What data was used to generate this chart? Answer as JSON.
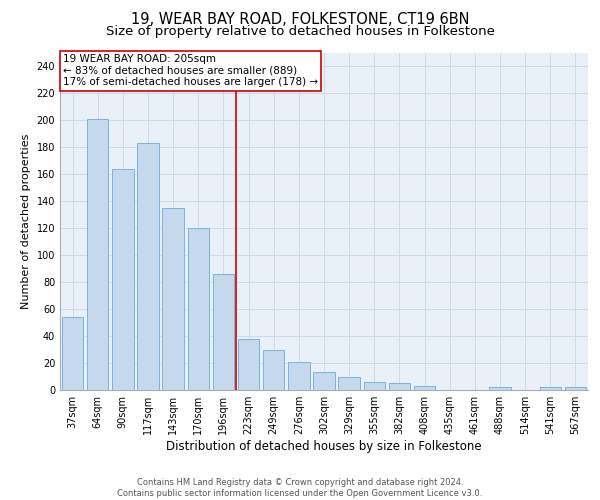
{
  "title": "19, WEAR BAY ROAD, FOLKESTONE, CT19 6BN",
  "subtitle": "Size of property relative to detached houses in Folkestone",
  "xlabel": "Distribution of detached houses by size in Folkestone",
  "ylabel": "Number of detached properties",
  "categories": [
    "37sqm",
    "64sqm",
    "90sqm",
    "117sqm",
    "143sqm",
    "170sqm",
    "196sqm",
    "223sqm",
    "249sqm",
    "276sqm",
    "302sqm",
    "329sqm",
    "355sqm",
    "382sqm",
    "408sqm",
    "435sqm",
    "461sqm",
    "488sqm",
    "514sqm",
    "541sqm",
    "567sqm"
  ],
  "values": [
    54,
    201,
    164,
    183,
    135,
    120,
    86,
    38,
    30,
    21,
    13,
    10,
    6,
    5,
    3,
    0,
    0,
    2,
    0,
    2,
    2
  ],
  "bar_color": "#c5d8ed",
  "bar_edge_color": "#6aaed6",
  "vline_x": 6.5,
  "annotation_text_line1": "19 WEAR BAY ROAD: 205sqm",
  "annotation_text_line2": "← 83% of detached houses are smaller (889)",
  "annotation_text_line3": "17% of semi-detached houses are larger (178) →",
  "vline_color": "#cc0000",
  "annotation_box_color": "white",
  "annotation_box_edge_color": "#cc0000",
  "ylim": [
    0,
    250
  ],
  "yticks": [
    0,
    20,
    40,
    60,
    80,
    100,
    120,
    140,
    160,
    180,
    200,
    220,
    240
  ],
  "grid_color": "#d0d8e8",
  "bg_color": "#eaf0f8",
  "footer_line1": "Contains HM Land Registry data © Crown copyright and database right 2024.",
  "footer_line2": "Contains public sector information licensed under the Open Government Licence v3.0.",
  "title_fontsize": 10.5,
  "subtitle_fontsize": 9.5,
  "xlabel_fontsize": 8.5,
  "ylabel_fontsize": 8,
  "tick_fontsize": 7,
  "footer_fontsize": 6,
  "annotation_fontsize": 7.5
}
